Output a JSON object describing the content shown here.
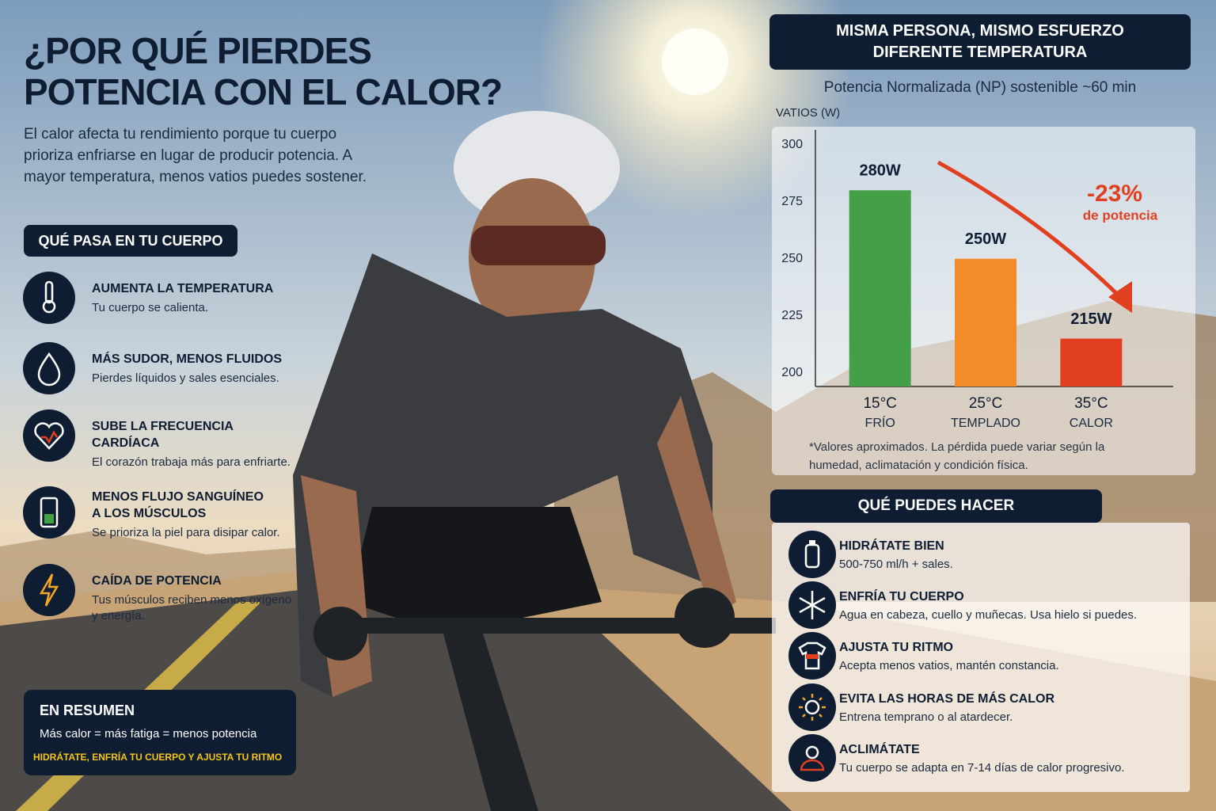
{
  "header": {
    "title": [
      "¿POR QUÉ PIERDES",
      "POTENCIA CON EL CALOR?"
    ],
    "intro": "El calor afecta tu rendimiento porque tu cuerpo prioriza enfriarse en lugar de producir potencia. A mayor temperatura, menos vatios puedes sostener."
  },
  "body_section": {
    "title": "QUÉ PASA EN TU CUERPO",
    "items": [
      {
        "title": "AUMENTA LA TEMPERATURA",
        "text": "Tu cuerpo se calienta."
      },
      {
        "title": "MÁS SUDOR, MENOS FLUIDOS",
        "text": "Pierdes líquidos y sales esenciales."
      },
      {
        "title": "SUBE LA FRECUENCIA CARDÍACA",
        "text": "El corazón trabaja más para enfriarte."
      },
      {
        "title": "MENOS FLUJO SANGUÍNEO\nA LOS MÚSCULOS",
        "text": "Se prioriza la piel para disipar calor."
      },
      {
        "title": "CAÍDA DE POTENCIA",
        "text": "Tus músculos reciben menos oxígeno y energía."
      }
    ]
  },
  "summary": {
    "title": "EN RESUMEN",
    "text": "Más calor = más fatiga = menos potencia",
    "tagline": "HIDRÁTATE, ENFRÍA TU CUERPO Y AJUSTA TU RITMO"
  },
  "chart_data": {
    "type": "bar",
    "title": [
      "MISMA PERSONA, MISMO ESFUERZO",
      "DIFERENTE TEMPERATURA"
    ],
    "subtitle": "Potencia Normalizada (NP) sostenible ~60 min",
    "y_label": "VATIOS (W)",
    "categories": [
      "15°C",
      "25°C",
      "35°C"
    ],
    "category_notes": [
      "FRÍO",
      "TEMPLADO",
      "CALOR"
    ],
    "values": [
      280,
      250,
      215
    ],
    "value_labels": [
      "280W",
      "250W",
      "215W"
    ],
    "colors": [
      "#43a047",
      "#f28c28",
      "#e0401f"
    ],
    "ylim": [
      194,
      303
    ],
    "yticks": [
      200,
      225,
      250,
      275,
      300
    ],
    "grid": false,
    "annotation": {
      "value": "-23%",
      "text": "de potencia"
    },
    "footnote": "*Valores aproximados. La pérdida puede variar según la humedad, aclimatación y condición física."
  },
  "actions": {
    "title": "QUÉ PUEDES HACER",
    "items": [
      {
        "title": "HIDRÁTATE BIEN",
        "text": "500-750 ml/h + sales."
      },
      {
        "title": "ENFRÍA TU CUERPO",
        "text": "Agua en cabeza, cuello y muñecas. Usa hielo si puedes."
      },
      {
        "title": "AJUSTA TU RITMO",
        "text": "Acepta menos vatios, mantén constancia."
      },
      {
        "title": "EVITA LAS HORAS DE MÁS CALOR",
        "text": "Entrena temprano o al atardecer."
      },
      {
        "title": "ACLIMÁTATE",
        "text": "Tu cuerpo se adapta en 7-14 días de calor progresivo."
      }
    ]
  }
}
